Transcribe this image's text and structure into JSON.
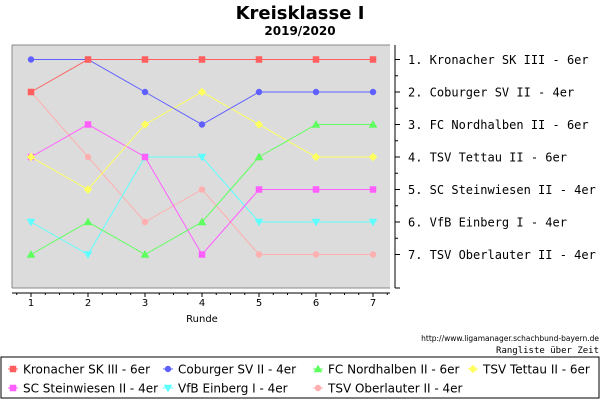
{
  "chart_data": {
    "type": "line",
    "title": "Kreisklasse I",
    "subtitle": "2019/2020",
    "xlabel": "Runde",
    "x": [
      1,
      2,
      3,
      4,
      5,
      6,
      7
    ],
    "ylim": [
      1,
      7
    ],
    "y_inverted": true,
    "grid": false,
    "legend_position": "bottom",
    "rank_labels": [
      "1. Kronacher SK III - 6er",
      "2. Coburger SV II - 4er",
      "3. FC Nordhalben II - 6er",
      "4. TSV Tettau II - 6er",
      "5. SC Steinwiesen II - 4er",
      "6. VfB Einberg I - 4er",
      "7. TSV Oberlauter II - 4er"
    ],
    "series": [
      {
        "name": "Kronacher SK III - 6er",
        "color": "#ff5f5f",
        "marker": "square",
        "values": [
          2,
          1,
          1,
          1,
          1,
          1,
          1
        ]
      },
      {
        "name": "Coburger SV II - 4er",
        "color": "#5f5fff",
        "marker": "circle",
        "values": [
          1,
          1,
          2,
          3,
          2,
          2,
          2
        ]
      },
      {
        "name": "FC Nordhalben II - 6er",
        "color": "#5fff5f",
        "marker": "triangle-up",
        "values": [
          7,
          6,
          7,
          6,
          4,
          3,
          3
        ]
      },
      {
        "name": "TSV Tettau II - 6er",
        "color": "#ffff5f",
        "marker": "diamond",
        "values": [
          4,
          5,
          3,
          2,
          3,
          4,
          4
        ]
      },
      {
        "name": "SC Steinwiesen II - 4er",
        "color": "#ff5fff",
        "marker": "square",
        "values": [
          4,
          3,
          4,
          7,
          5,
          5,
          5
        ]
      },
      {
        "name": "VfB Einberg I - 4er",
        "color": "#5fffff",
        "marker": "triangle-down",
        "values": [
          6,
          7,
          4,
          4,
          6,
          6,
          6
        ]
      },
      {
        "name": "TSV Oberlauter II - 4er",
        "color": "#ffafaf",
        "marker": "circle",
        "values": [
          2,
          4,
          6,
          5,
          7,
          7,
          7
        ]
      }
    ]
  },
  "footer": {
    "url": "http://www.ligamanager.schachbund-bayern.de",
    "caption": "Rangliste über Zeit"
  }
}
